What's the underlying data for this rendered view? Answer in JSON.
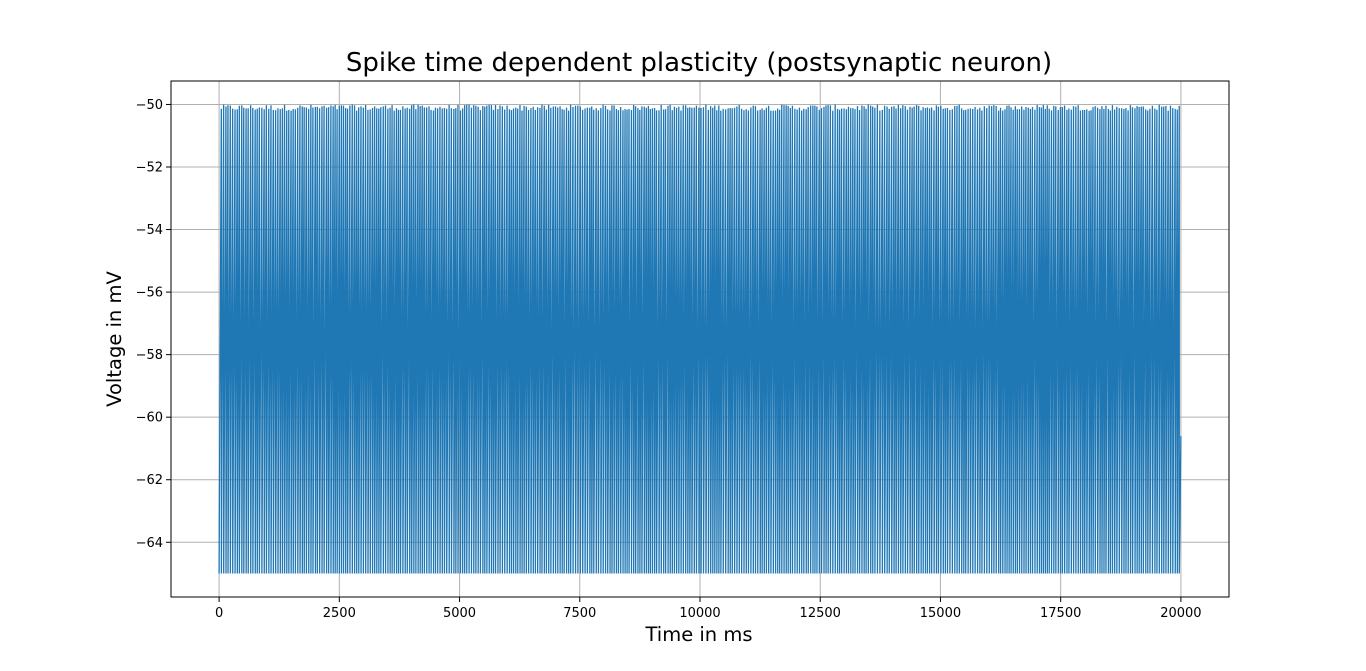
{
  "chart_data": {
    "type": "line",
    "title": "Spike time dependent plasticity (postsynaptic neuron)",
    "xlabel": "Time in ms",
    "ylabel": "Voltage in mV",
    "xlim": [
      -1000,
      21000
    ],
    "ylim": [
      -65.75,
      -49.25
    ],
    "xticks": [
      0,
      2500,
      5000,
      7500,
      10000,
      12500,
      15000,
      17500,
      20000
    ],
    "yticks": [
      -64,
      -62,
      -60,
      -58,
      -56,
      -54,
      -52,
      -50
    ],
    "xtick_labels": [
      "0",
      "2500",
      "5000",
      "7500",
      "10000",
      "12500",
      "15000",
      "17500",
      "20000"
    ],
    "ytick_labels": [
      "−64",
      "−62",
      "−60",
      "−58",
      "−56",
      "−54",
      "−52",
      "−50"
    ],
    "grid": true,
    "series": [
      {
        "color": "#1f77b4",
        "description": "membrane potential spiking between reset and threshold",
        "x_start": 0,
        "x_end": 20000,
        "spike_interval_ms": 45,
        "peak_min": -50.2,
        "peak_max": -50.0,
        "trough": -65.0,
        "final_value": -60.6
      }
    ]
  }
}
